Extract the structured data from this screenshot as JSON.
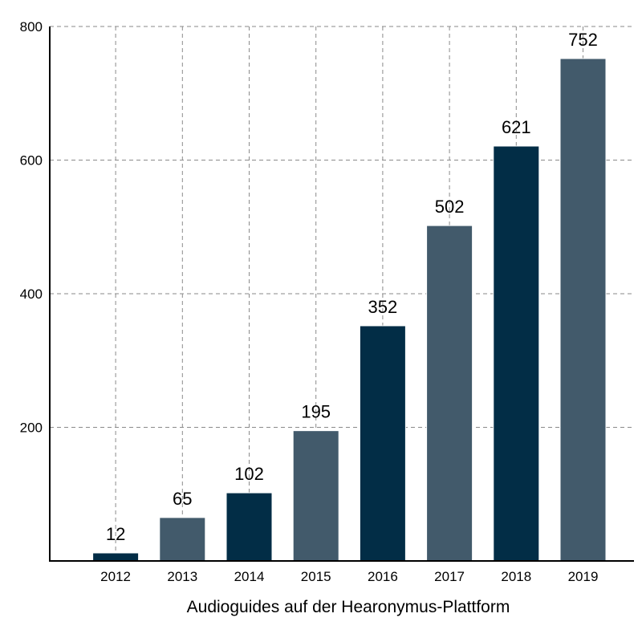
{
  "chart_data": {
    "type": "bar",
    "title": "",
    "xlabel": "Audioguides auf der Hearonymus-Plattform",
    "ylabel": "",
    "categories": [
      "2012",
      "2013",
      "2014",
      "2015",
      "2016",
      "2017",
      "2018",
      "2019"
    ],
    "values": [
      12,
      65,
      102,
      195,
      352,
      502,
      621,
      752
    ],
    "data_labels": [
      "12",
      "65",
      "102",
      "195",
      "352",
      "502",
      "621",
      "752"
    ],
    "bar_colors": [
      "#022d46",
      "#425a6b",
      "#022d46",
      "#425a6b",
      "#022d46",
      "#425a6b",
      "#022d46",
      "#425a6b"
    ],
    "ylim": [
      0,
      800
    ],
    "yticks": [
      200,
      400,
      600,
      800
    ],
    "ytick_labels": [
      "200",
      "400",
      "600",
      "800"
    ],
    "grid": true,
    "legend": "none"
  }
}
